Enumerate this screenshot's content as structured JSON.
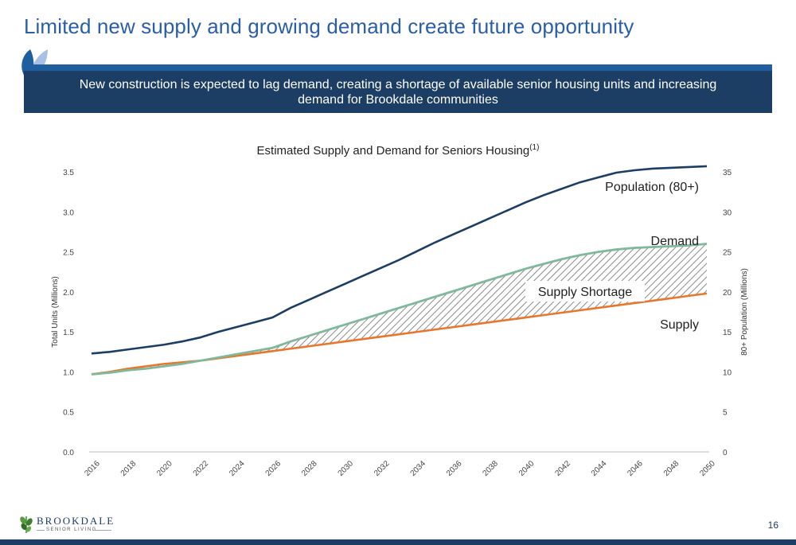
{
  "slide": {
    "title": "Limited new supply and growing demand create future opportunity",
    "banner_text": "New construction is expected to lag demand, creating a shortage of available senior housing units and increasing demand for Brookdale communities",
    "page_number": "16",
    "brand_name": "BROOKDALE",
    "brand_sub": "SENIOR LIVING"
  },
  "colors": {
    "title": "#2a5ea8",
    "banner": "#1c3d64",
    "population": "#1c3d64",
    "demand": "#7fb89a",
    "supply": "#e8772e"
  },
  "chart_data": {
    "type": "line",
    "title": "Estimated Supply and Demand for Seniors Housing",
    "title_superscript": "(1)",
    "ylabel": "Total Units (Millions)",
    "y2label": "80+ Population (Millions)",
    "ylim": [
      0,
      3.5
    ],
    "y2lim": [
      0,
      35
    ],
    "yticks": [
      "0.0",
      "0.5",
      "1.0",
      "1.5",
      "2.0",
      "2.5",
      "3.0",
      "3.5"
    ],
    "y2ticks": [
      "0",
      "5",
      "10",
      "15",
      "20",
      "25",
      "30",
      "35"
    ],
    "xlim": [
      2016,
      2050
    ],
    "xticks": [
      "2016",
      "2018",
      "2020",
      "2022",
      "2024",
      "2026",
      "2028",
      "2030",
      "2032",
      "2034",
      "2036",
      "2038",
      "2040",
      "2042",
      "2044",
      "2046",
      "2048",
      "2050"
    ],
    "grid": false,
    "series": [
      {
        "name": "Population (80+)",
        "axis": "right",
        "points": [
          [
            2016,
            12.3
          ],
          [
            2017,
            12.5
          ],
          [
            2018,
            12.8
          ],
          [
            2019,
            13.1
          ],
          [
            2020,
            13.4
          ],
          [
            2021,
            13.8
          ],
          [
            2022,
            14.3
          ],
          [
            2023,
            15.0
          ],
          [
            2024,
            15.6
          ],
          [
            2025,
            16.2
          ],
          [
            2026,
            16.8
          ],
          [
            2027,
            18.0
          ],
          [
            2028,
            19.0
          ],
          [
            2029,
            20.0
          ],
          [
            2030,
            21.0
          ],
          [
            2031,
            22.0
          ],
          [
            2032,
            23.0
          ],
          [
            2033,
            24.0
          ],
          [
            2034,
            25.1
          ],
          [
            2035,
            26.2
          ],
          [
            2036,
            27.2
          ],
          [
            2037,
            28.2
          ],
          [
            2038,
            29.2
          ],
          [
            2039,
            30.2
          ],
          [
            2040,
            31.2
          ],
          [
            2041,
            32.1
          ],
          [
            2042,
            32.9
          ],
          [
            2043,
            33.7
          ],
          [
            2044,
            34.3
          ],
          [
            2045,
            34.9
          ],
          [
            2046,
            35.2
          ],
          [
            2047,
            35.4
          ],
          [
            2048,
            35.5
          ],
          [
            2049,
            35.6
          ],
          [
            2050,
            35.7
          ]
        ]
      },
      {
        "name": "Demand",
        "axis": "left",
        "points": [
          [
            2016,
            0.97
          ],
          [
            2017,
            0.99
          ],
          [
            2018,
            1.02
          ],
          [
            2019,
            1.04
          ],
          [
            2020,
            1.07
          ],
          [
            2021,
            1.1
          ],
          [
            2022,
            1.14
          ],
          [
            2023,
            1.18
          ],
          [
            2024,
            1.22
          ],
          [
            2025,
            1.26
          ],
          [
            2026,
            1.3
          ],
          [
            2027,
            1.38
          ],
          [
            2028,
            1.45
          ],
          [
            2029,
            1.52
          ],
          [
            2030,
            1.59
          ],
          [
            2031,
            1.66
          ],
          [
            2032,
            1.73
          ],
          [
            2033,
            1.8
          ],
          [
            2034,
            1.87
          ],
          [
            2035,
            1.94
          ],
          [
            2036,
            2.01
          ],
          [
            2037,
            2.08
          ],
          [
            2038,
            2.15
          ],
          [
            2039,
            2.22
          ],
          [
            2040,
            2.29
          ],
          [
            2041,
            2.35
          ],
          [
            2042,
            2.41
          ],
          [
            2043,
            2.46
          ],
          [
            2044,
            2.5
          ],
          [
            2045,
            2.53
          ],
          [
            2046,
            2.55
          ],
          [
            2047,
            2.56
          ],
          [
            2048,
            2.57
          ],
          [
            2049,
            2.58
          ],
          [
            2050,
            2.6
          ]
        ]
      },
      {
        "name": "Supply",
        "axis": "left",
        "points": [
          [
            2016,
            0.97
          ],
          [
            2017,
            1.0
          ],
          [
            2018,
            1.04
          ],
          [
            2019,
            1.07
          ],
          [
            2020,
            1.1
          ],
          [
            2021,
            1.12
          ],
          [
            2022,
            1.14
          ],
          [
            2023,
            1.17
          ],
          [
            2024,
            1.2
          ],
          [
            2025,
            1.23
          ],
          [
            2026,
            1.26
          ],
          [
            2027,
            1.29
          ],
          [
            2028,
            1.32
          ],
          [
            2029,
            1.35
          ],
          [
            2030,
            1.38
          ],
          [
            2031,
            1.41
          ],
          [
            2032,
            1.44
          ],
          [
            2033,
            1.47
          ],
          [
            2034,
            1.5
          ],
          [
            2035,
            1.53
          ],
          [
            2036,
            1.56
          ],
          [
            2037,
            1.59
          ],
          [
            2038,
            1.62
          ],
          [
            2039,
            1.65
          ],
          [
            2040,
            1.68
          ],
          [
            2041,
            1.71
          ],
          [
            2042,
            1.74
          ],
          [
            2043,
            1.77
          ],
          [
            2044,
            1.8
          ],
          [
            2045,
            1.83
          ],
          [
            2046,
            1.86
          ],
          [
            2047,
            1.89
          ],
          [
            2048,
            1.92
          ],
          [
            2049,
            1.95
          ],
          [
            2050,
            1.98
          ]
        ]
      }
    ],
    "annotations": {
      "shortage": "Supply Shortage",
      "population_label": "Population (80+)",
      "demand_label": "Demand",
      "supply_label": "Supply"
    }
  }
}
